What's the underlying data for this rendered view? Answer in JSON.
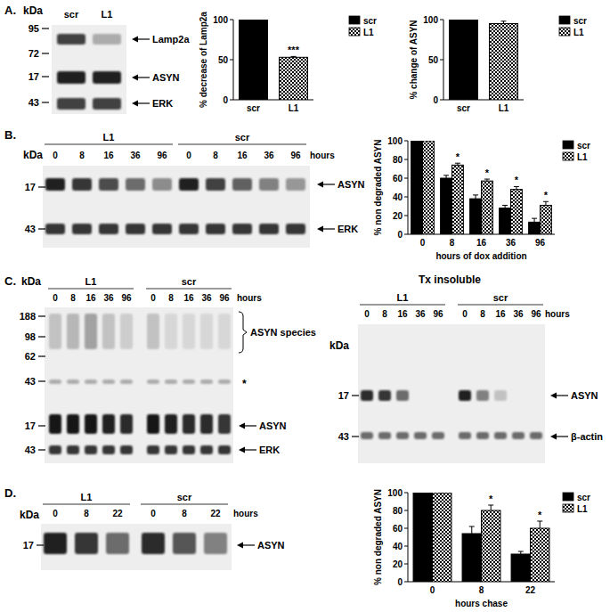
{
  "chart_data": [
    {
      "type": "bar",
      "y_label": "% decrease of Lamp2a",
      "categories": [
        "scr",
        "L1"
      ],
      "series": [
        {
          "name": "scr",
          "color": "#000000",
          "marker": "solid",
          "values": [
            100,
            null
          ],
          "errors": [
            0,
            null
          ]
        },
        {
          "name": "L1",
          "color": "#000000",
          "marker": "checkered",
          "values": [
            null,
            53
          ],
          "errors": [
            null,
            1
          ],
          "annotations": [
            null,
            "***"
          ]
        }
      ],
      "ylim": [
        0,
        100
      ],
      "yticks": [
        0,
        50,
        100
      ],
      "legend": "upper right"
    },
    {
      "type": "bar",
      "y_label": "% change of ASYN",
      "categories": [
        "scr",
        "L1"
      ],
      "series": [
        {
          "name": "scr",
          "color": "#000000",
          "marker": "solid",
          "values": [
            100,
            null
          ],
          "errors": [
            0,
            null
          ]
        },
        {
          "name": "L1",
          "color": "#000000",
          "marker": "checkered",
          "values": [
            null,
            95
          ],
          "errors": [
            null,
            3
          ]
        }
      ],
      "ylim": [
        0,
        100
      ],
      "yticks": [
        0,
        50,
        100
      ],
      "legend": "upper right"
    },
    {
      "type": "bar",
      "y_label": "% non degraded ASYN",
      "x_label": "hours of dox addition",
      "categories": [
        "0",
        "8",
        "16",
        "36",
        "96"
      ],
      "series": [
        {
          "name": "scr",
          "color": "#000000",
          "marker": "solid",
          "values": [
            100,
            60,
            38,
            28,
            13
          ],
          "errors": [
            0,
            3,
            4,
            3,
            4
          ]
        },
        {
          "name": "L1",
          "color": "#000000",
          "marker": "checkered",
          "values": [
            100,
            74,
            57,
            48,
            31
          ],
          "errors": [
            0,
            2,
            2,
            3,
            4
          ],
          "annotations": [
            null,
            "*",
            "*",
            "*",
            "*"
          ]
        }
      ],
      "ylim": [
        0,
        100
      ],
      "yticks": [
        0,
        20,
        40,
        60,
        80,
        100
      ],
      "legend": "upper right"
    },
    {
      "type": "bar",
      "y_label": "% non degraded ASYN",
      "x_label": "hours chase",
      "categories": [
        "0",
        "8",
        "22"
      ],
      "series": [
        {
          "name": "scr",
          "color": "#000000",
          "marker": "solid",
          "values": [
            100,
            54,
            31
          ],
          "errors": [
            0,
            8,
            3
          ]
        },
        {
          "name": "L1",
          "color": "#000000",
          "marker": "checkered",
          "values": [
            100,
            80,
            60
          ],
          "errors": [
            0,
            6,
            8
          ],
          "annotations": [
            null,
            "*",
            "*"
          ]
        }
      ],
      "ylim": [
        0,
        100
      ],
      "yticks": [
        0,
        20,
        40,
        60,
        80,
        100
      ],
      "legend": "upper right"
    }
  ],
  "blots": [
    {
      "panel": "A.",
      "unit": "kDa",
      "lanes": [
        "scr",
        "L1"
      ],
      "markers": [
        95,
        72,
        17,
        43
      ],
      "bands": [
        "Lamp2a",
        "ASYN",
        "ERK"
      ]
    },
    {
      "panel": "B.",
      "unit": "kDa",
      "groups": [
        "L1",
        "scr"
      ],
      "hours": [
        "0",
        "8",
        "16",
        "36",
        "96"
      ],
      "hours_label": "hours",
      "markers": [
        17,
        43
      ],
      "bands": [
        "ASYN",
        "ERK"
      ]
    },
    {
      "panel": "C.",
      "unit": "kDa",
      "groups": [
        "L1",
        "scr"
      ],
      "hours": [
        "0",
        "8",
        "16",
        "36",
        "96"
      ],
      "hours_label": "hours",
      "markers": [
        188,
        98,
        62,
        43,
        17,
        43
      ],
      "bands": [
        "ASYN species",
        "*",
        "ASYN",
        "ERK"
      ]
    },
    {
      "title": "Tx insoluble",
      "unit": "kDa",
      "groups": [
        "L1",
        "scr"
      ],
      "hours": [
        "0",
        "8",
        "16",
        "36",
        "96"
      ],
      "hours_label": "hours",
      "markers": [
        17,
        43
      ],
      "bands": [
        "ASYN",
        "β-actin"
      ]
    },
    {
      "panel": "D.",
      "unit": "kDa",
      "groups": [
        "L1",
        "scr"
      ],
      "hours": [
        "0",
        "8",
        "22"
      ],
      "hours_label": "hours",
      "markers": [
        17
      ],
      "bands": [
        "ASYN"
      ]
    }
  ]
}
